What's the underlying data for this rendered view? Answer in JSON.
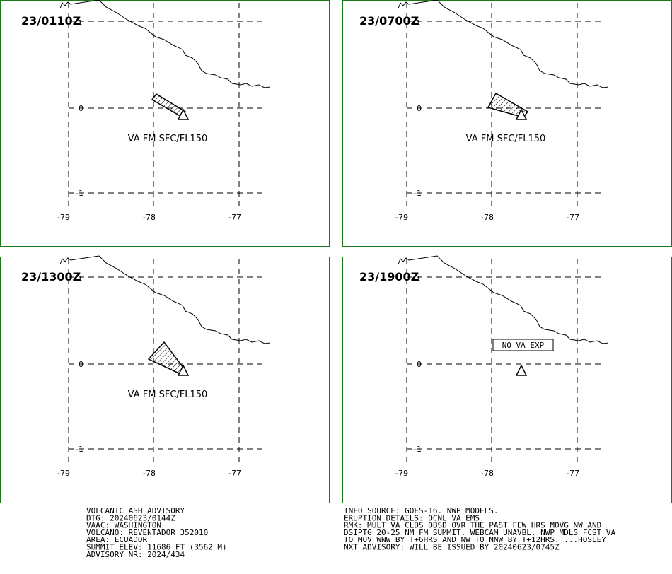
{
  "panels": [
    {
      "time": "23/0110Z",
      "index": "1",
      "label": "VA FM SFC/FL150"
    },
    {
      "time": "23/0700Z",
      "index": "1",
      "label": "VA FM SFC/FL150"
    },
    {
      "time": "23/1300Z",
      "index": "1",
      "label": "VA FM SFC/FL150"
    },
    {
      "time": "23/1900Z",
      "index": "1",
      "label": "NO VA EXP"
    }
  ],
  "axes": {
    "lon_labels": [
      "-79",
      "-78",
      "-77"
    ],
    "lat_labels": [
      "0",
      "-1"
    ]
  },
  "advisory_left": [
    "VOLCANIC ASH ADVISORY",
    "DTG: 20240623/0144Z",
    "VAAC: WASHINGTON",
    "VOLCANO: REVENTADOR 352010",
    "AREA: ECUADOR",
    "SUMMIT ELEV: 11686 FT (3562 M)",
    "ADVISORY NR: 2024/434"
  ],
  "advisory_right": [
    "INFO SOURCE: GOES-16. NWP MODELS.",
    "ERUPTION DETAILS: OCNL VA EMS.",
    "RMK: MULT VA CLDS OBSD OVR THE PAST FEW HRS MOVG NW AND",
    "DSIPTG 20-25 NM FM SUMMIT. WEBCAM UNAVBL. NWP MDLS FCST VA",
    "TO MOV WNW BY T+6HRS AND NW TO NNW BY T+12HRS. ...HOSLEY",
    "NXT ADVISORY: WILL BE ISSUED BY 20240623/0745Z"
  ]
}
